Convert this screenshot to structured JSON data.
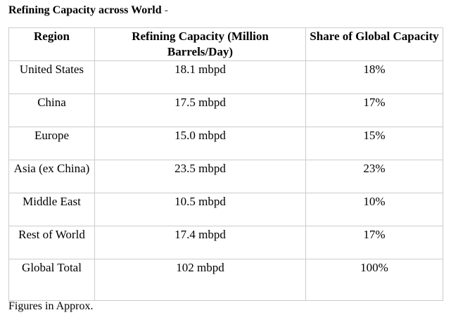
{
  "title": {
    "main": "Refining Capacity across World",
    "suffix": " -"
  },
  "table": {
    "headers": [
      "Region",
      "Refining Capacity (Million Barrels/Day)",
      "Share of Global Capacity"
    ],
    "rows": [
      [
        "United States",
        "18.1 mbpd",
        "18%"
      ],
      [
        "China",
        "17.5 mbpd",
        "17%"
      ],
      [
        "Europe",
        "15.0 mbpd",
        "15%"
      ],
      [
        "Asia (ex China)",
        "23.5 mbpd",
        "23%"
      ],
      [
        "Middle East",
        "10.5 mbpd",
        "10%"
      ],
      [
        "Rest of World",
        "17.4 mbpd",
        "17%"
      ],
      [
        "Global Total",
        "102 mbpd",
        "100%"
      ]
    ]
  },
  "footnote": "Figures in Approx."
}
